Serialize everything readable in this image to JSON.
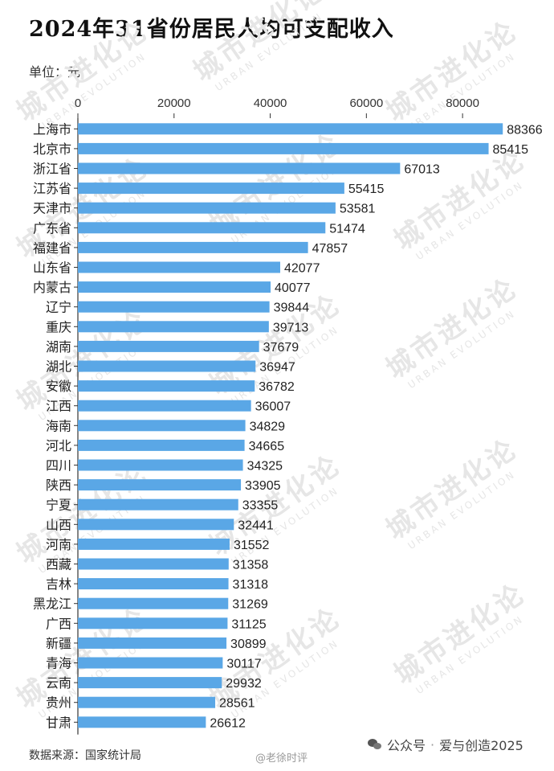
{
  "header": {
    "title": "2024年31省份居民人均可支配收入",
    "unit_label": "单位",
    "unit_value": "元"
  },
  "footer": {
    "source_label": "数据来源",
    "source_value": "国家统计局",
    "weibo_handle": "@老徐时评",
    "wechat_prefix": "公众号",
    "wechat_name": "爱与创造2025"
  },
  "watermark": {
    "main": "城市进化论",
    "sub": "URBAN EVOLUTION"
  },
  "colors": {
    "bar": "#5aa7e6",
    "text": "#222222",
    "watermark": "#e6e6e6"
  },
  "chart_data": {
    "type": "bar",
    "orientation": "horizontal",
    "categories": [
      "上海市",
      "北京市",
      "浙江省",
      "江苏省",
      "天津市",
      "广东省",
      "福建省",
      "山东省",
      "内蒙古",
      "辽宁",
      "重庆",
      "湖南",
      "湖北",
      "安徽",
      "江西",
      "海南",
      "河北",
      "四川",
      "陕西",
      "宁夏",
      "山西",
      "河南",
      "西藏",
      "吉林",
      "黑龙江",
      "广西",
      "新疆",
      "青海",
      "云南",
      "贵州",
      "甘肃"
    ],
    "values": [
      88366,
      85415,
      67013,
      55415,
      53581,
      51474,
      47857,
      42077,
      40077,
      39844,
      39713,
      37679,
      36947,
      36782,
      36007,
      34829,
      34665,
      34325,
      33905,
      33355,
      32441,
      31552,
      31358,
      31318,
      31269,
      31125,
      30899,
      30117,
      29932,
      28561,
      26612
    ],
    "value_labels": [
      "88366",
      "85415",
      "67013",
      "55415",
      "53581",
      "51474",
      "47857",
      "42077",
      "40077",
      "39844",
      "39713",
      "37679",
      "36947",
      "36782",
      "36007",
      "34829",
      "34665",
      "34325",
      "33905",
      "33355",
      "32441",
      "31552",
      "31358",
      "31318",
      "31269",
      "31125",
      "30899",
      "30117",
      "29932",
      "28561",
      "26612"
    ],
    "x_ticks": [
      0,
      20000,
      40000,
      60000,
      80000
    ],
    "x_tick_labels": [
      "0",
      "20000",
      "40000",
      "60000",
      "80000"
    ],
    "xlim": [
      0,
      90000
    ],
    "grid": false,
    "legend": "none"
  }
}
